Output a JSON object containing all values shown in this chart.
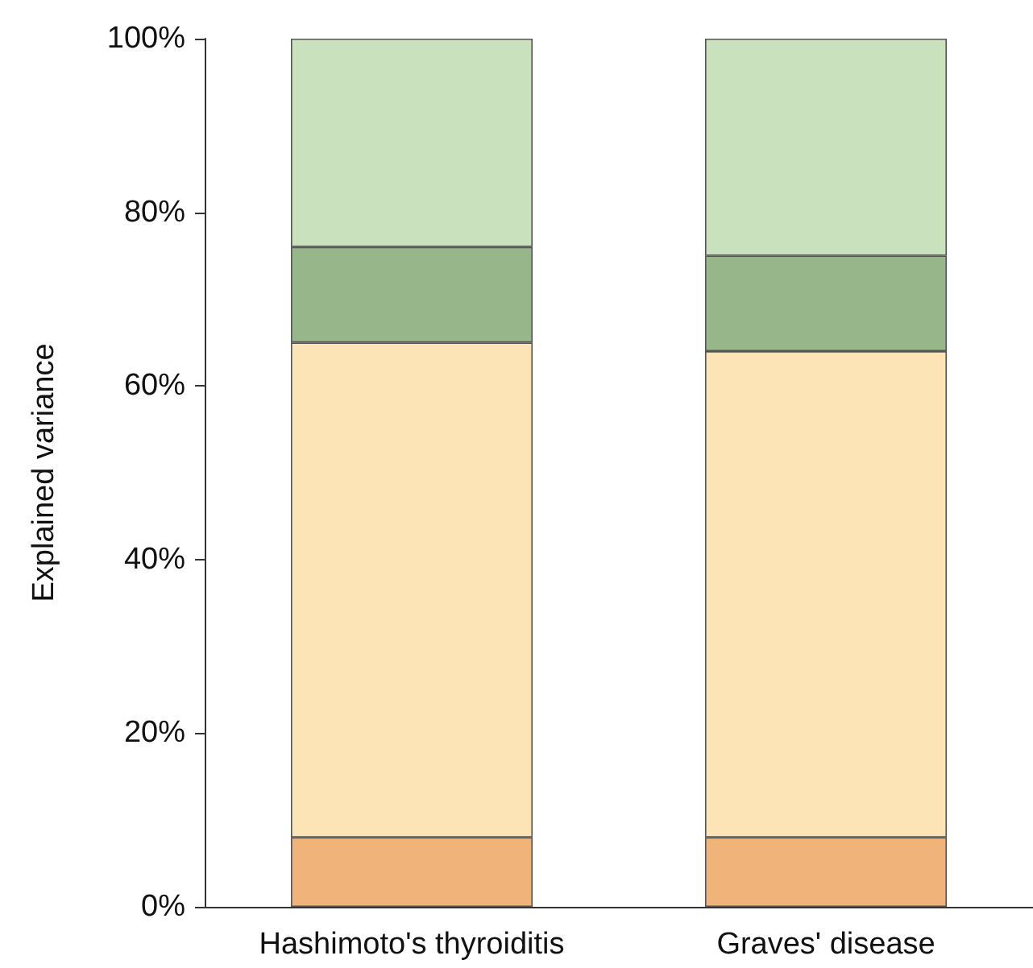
{
  "chart_data": {
    "type": "bar",
    "stacked": true,
    "ylabel": "Explained variance",
    "categories": [
      "Hashimoto's thyroiditis",
      "Graves' disease"
    ],
    "series": [
      {
        "color": "#f0b47a",
        "values": [
          8,
          8
        ]
      },
      {
        "color": "#fce4b7",
        "values": [
          57,
          56
        ]
      },
      {
        "color": "#97b78b",
        "values": [
          11,
          11
        ]
      },
      {
        "color": "#c9e2bd",
        "values": [
          24,
          25
        ]
      }
    ],
    "ylim": [
      0,
      100
    ],
    "yticks": [
      {
        "value": 0,
        "label": "0%"
      },
      {
        "value": 20,
        "label": "20%"
      },
      {
        "value": 40,
        "label": "40%"
      },
      {
        "value": 60,
        "label": "60%"
      },
      {
        "value": 80,
        "label": "80%"
      },
      {
        "value": 100,
        "label": "100%"
      }
    ],
    "grid": false
  }
}
